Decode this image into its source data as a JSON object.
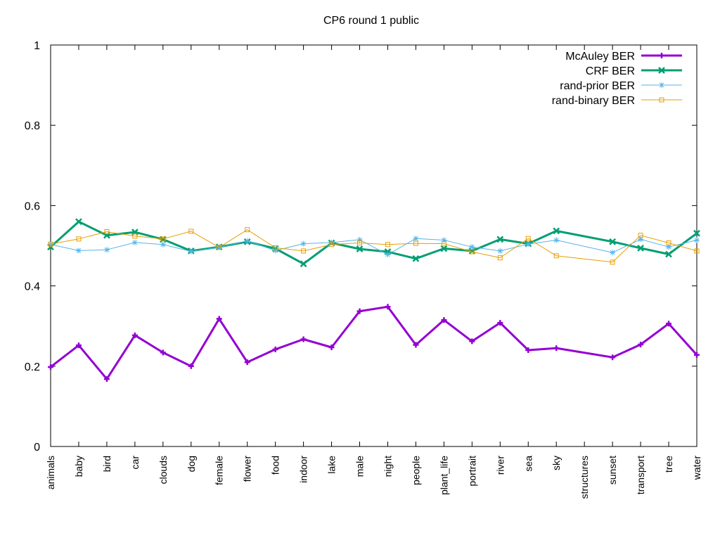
{
  "chart_data": {
    "type": "line",
    "title": "CP6 round 1 public",
    "xlabel": "",
    "ylabel": "",
    "ylim": [
      0,
      1
    ],
    "yticks": [
      "0",
      "0.2",
      "0.4",
      "0.6",
      "0.8",
      "1"
    ],
    "grid": false,
    "legend_position": "top-right",
    "categories": [
      "animals",
      "baby",
      "bird",
      "car",
      "clouds",
      "dog",
      "female",
      "flower",
      "food",
      "indoor",
      "lake",
      "male",
      "night",
      "people",
      "plant_life",
      "portrait",
      "river",
      "sea",
      "sky",
      "structures",
      "sunset",
      "transport",
      "tree",
      "water"
    ],
    "series": [
      {
        "name": "McAuley BER",
        "color": "#9400d3",
        "marker": "plus",
        "width": 3,
        "values": [
          0.198,
          0.252,
          0.168,
          0.277,
          0.234,
          0.2,
          0.318,
          0.21,
          0.242,
          0.267,
          0.247,
          0.337,
          0.348,
          0.253,
          0.315,
          0.262,
          0.308,
          0.24,
          0.245,
          null,
          0.222,
          0.254,
          0.306,
          0.228
        ]
      },
      {
        "name": "CRF BER",
        "color": "#009e73",
        "marker": "x",
        "width": 3,
        "values": [
          0.497,
          0.56,
          0.526,
          0.534,
          0.516,
          0.487,
          0.497,
          0.51,
          0.493,
          0.455,
          0.507,
          0.492,
          0.485,
          0.468,
          0.493,
          0.487,
          0.516,
          0.505,
          0.537,
          null,
          0.51,
          0.494,
          0.479,
          0.531
        ]
      },
      {
        "name": "rand-prior BER",
        "color": "#56b4e9",
        "marker": "star",
        "width": 1,
        "values": [
          0.503,
          0.488,
          0.49,
          0.508,
          0.503,
          0.486,
          0.496,
          0.512,
          0.488,
          0.505,
          0.508,
          0.515,
          0.478,
          0.518,
          0.514,
          0.497,
          0.487,
          0.504,
          0.514,
          null,
          0.483,
          0.516,
          0.497,
          0.514
        ]
      },
      {
        "name": "rand-binary BER",
        "color": "#e69f00",
        "marker": "square",
        "width": 1,
        "values": [
          0.504,
          0.517,
          0.535,
          0.524,
          0.517,
          0.536,
          0.496,
          0.54,
          0.495,
          0.487,
          0.503,
          0.507,
          0.503,
          0.506,
          0.505,
          0.485,
          0.47,
          0.518,
          0.475,
          null,
          0.459,
          0.526,
          0.507,
          0.487
        ]
      }
    ]
  }
}
